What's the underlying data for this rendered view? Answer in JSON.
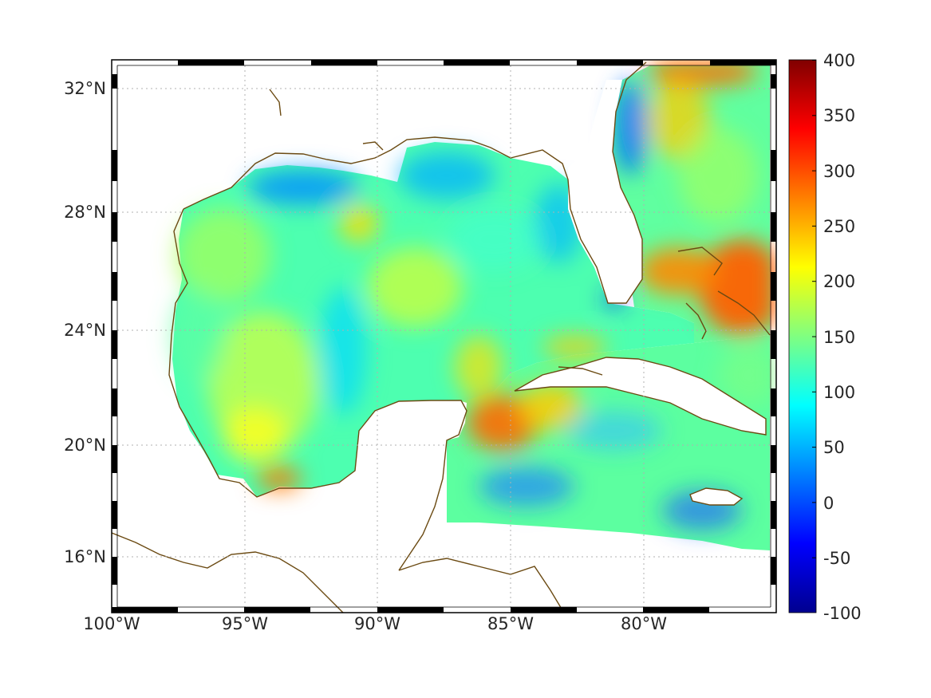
{
  "map": {
    "projection": "Mercator",
    "lon_range": [
      -100,
      -75
    ],
    "lat_range": [
      14.3,
      33
    ],
    "lon_ticks": [
      "100°W",
      "95°W",
      "90°W",
      "85°W",
      "80°W"
    ],
    "lon_tick_values": [
      -100,
      -95,
      -90,
      -85,
      -80
    ],
    "lat_ticks": [
      "32°N",
      "28°N",
      "24°N",
      "20°N",
      "16°N"
    ],
    "lat_tick_values": [
      32,
      28,
      24,
      20,
      16
    ],
    "grid": "dotted",
    "frame": "black-white checkered border",
    "coastline_color": "#6b4a12",
    "land_color": "#ffffff"
  },
  "colorbar": {
    "colormap": "jet",
    "min": -100,
    "max": 400,
    "ticks": [
      "400",
      "350",
      "300",
      "250",
      "200",
      "150",
      "100",
      "50",
      "0",
      "-50",
      "-100"
    ],
    "tick_values": [
      400,
      350,
      300,
      250,
      200,
      150,
      100,
      50,
      0,
      -50,
      -100
    ]
  },
  "field_summary": {
    "gulf_typical_range": [
      80,
      190
    ],
    "high_regions": [
      "Bahamas east of Florida (~250-280)",
      "Yucatan Channel / NW Caribbean (~230-260)",
      "Bay of Campeche south (~240)"
    ],
    "low_regions": [
      "Northern Gulf shelf (~40-70)",
      "Florida west shelf (~60)",
      "Atlantic near Georgia coast (~40)"
    ]
  }
}
